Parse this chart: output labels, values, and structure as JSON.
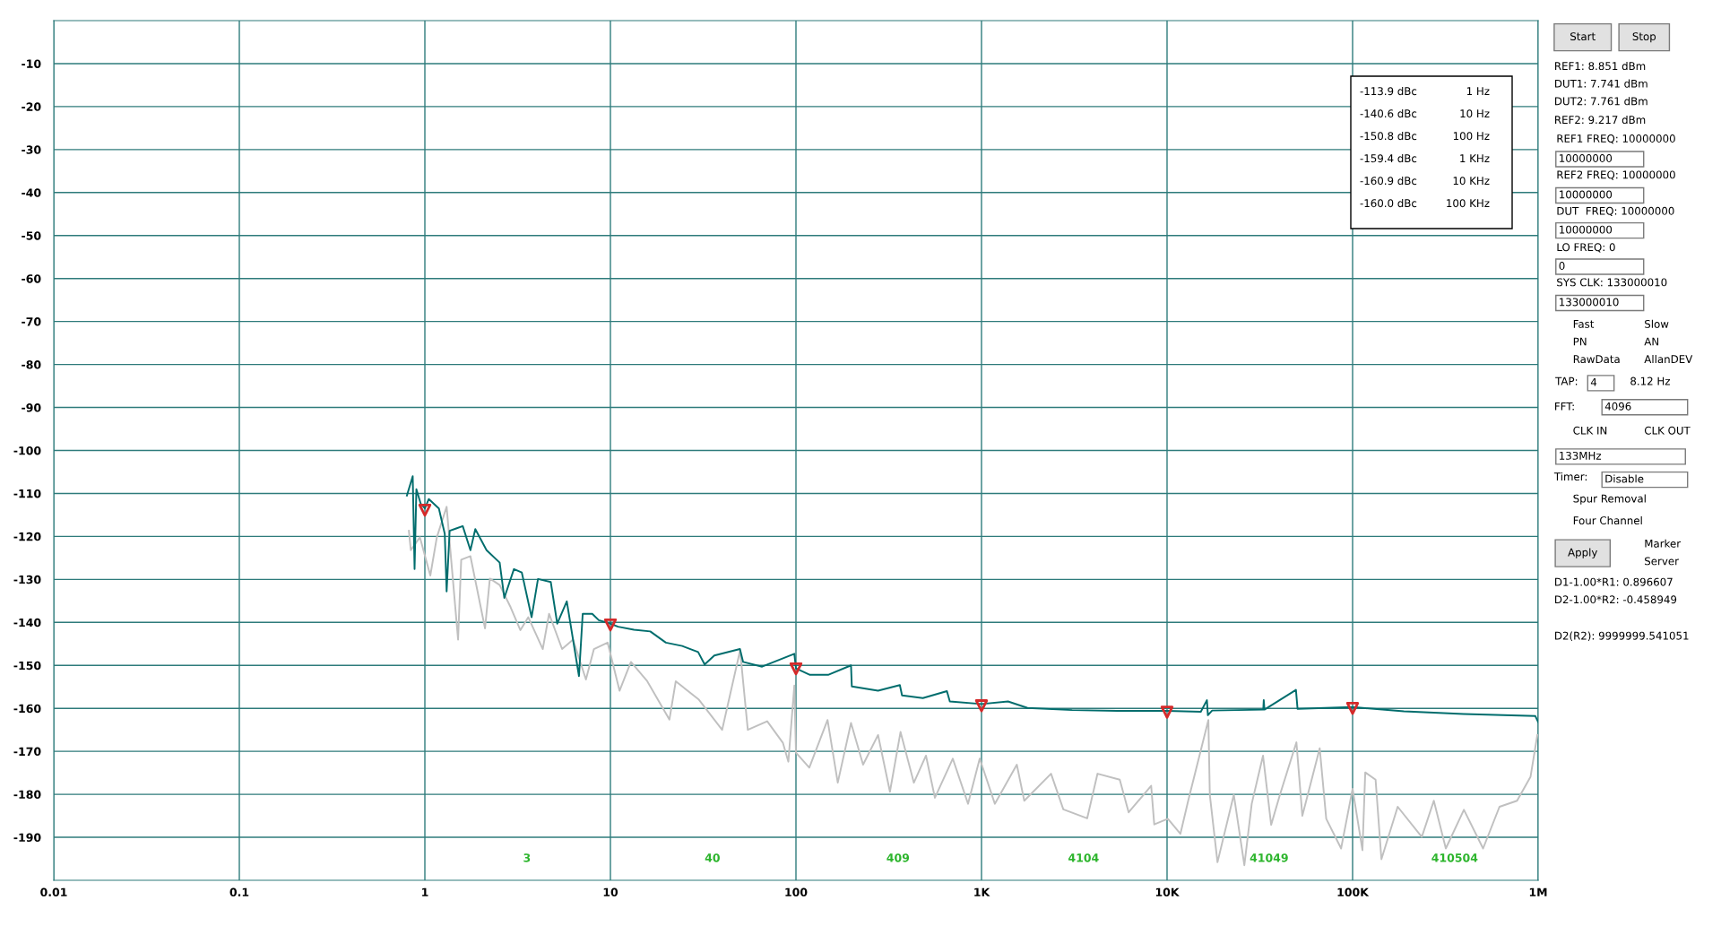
{
  "chart_data": [
    {
      "type": "line",
      "xlim": [
        0.01,
        1000000
      ],
      "ylim": [
        -200,
        0
      ],
      "log": "x",
      "grid": true,
      "xticks": [
        0.01,
        0.1,
        1,
        10,
        100,
        {
          "value": 1000,
          "label": "1K"
        },
        {
          "value": 10000,
          "label": "10K"
        },
        {
          "value": 100000,
          "label": "100K"
        },
        {
          "value": 1000000,
          "label": "1M"
        }
      ],
      "yticks": [
        -10,
        -20,
        -30,
        -40,
        -50,
        -60,
        -70,
        -80,
        -90,
        -100,
        -110,
        -120,
        -130,
        -140,
        -150,
        -160,
        -170,
        -180,
        -190
      ],
      "series": [
        {
          "color": "#c0c0c0",
          "x": [
            0.82,
            0.84,
            0.94,
            1.07,
            1.16,
            1.31,
            1.51,
            1.57,
            1.76,
            2.11,
            2.24,
            2.53,
            2.9,
            3.27,
            3.61,
            4.32,
            4.67,
            5.49,
            6.29,
            7.38,
            8.15,
            9.66,
            11.2,
            12.9,
            15.8,
            20.8,
            22.5,
            30,
            40,
            50,
            55,
            70,
            85,
            91,
            98,
            100,
            118,
            148,
            168,
            198,
            230,
            277,
            321,
            366,
            432,
            502,
            561,
            700,
            846,
            978,
            1180,
            1550,
            1700,
            2370,
            2760,
            3710,
            4220,
            5560,
            6210,
            8210,
            8530,
            10100,
            11800,
            13000,
            16700,
            17000,
            18700,
            22900,
            26100,
            28600,
            32900,
            36400,
            40600,
            49800,
            53600,
            66500,
            72100,
            86700,
            100000,
            113000,
            117000,
            133000,
            143000,
            175000,
            236000,
            274000,
            318000,
            398000,
            505000,
            619000,
            770000,
            910000,
            990000
          ],
          "values": [
            -118.7,
            -123.2,
            -120.2,
            -129.1,
            -120.2,
            -113.1,
            -144,
            -125.4,
            -124.6,
            -141.4,
            -129.8,
            -131.3,
            -136.5,
            -141.8,
            -138.8,
            -146.2,
            -138,
            -146.2,
            -144,
            -153.3,
            -146.2,
            -144.7,
            -155.9,
            -149.2,
            -153.7,
            -162.6,
            -153.7,
            -158,
            -165,
            -146.5,
            -165,
            -163,
            -168,
            -172.4,
            -154.7,
            -170.3,
            -173.8,
            -162.7,
            -177.3,
            -163.4,
            -173.1,
            -166.2,
            -179.4,
            -165.5,
            -177.3,
            -171,
            -180.8,
            -171.7,
            -182.2,
            -171.7,
            -182.2,
            -173.1,
            -181.5,
            -175.2,
            -183.5,
            -185.6,
            -175.2,
            -176.6,
            -184.2,
            -178,
            -187,
            -185.7,
            -189.2,
            -181.5,
            -162.7,
            -180.1,
            -195.8,
            -180.1,
            -196.5,
            -182.2,
            -171,
            -187.1,
            -180.1,
            -167.9,
            -185,
            -169.3,
            -185.7,
            -192.6,
            -178.7,
            -193,
            -174.9,
            -176.6,
            -195.1,
            -182.9,
            -189.9,
            -181.5,
            -192.6,
            -183.6,
            -192.6,
            -182.9,
            -181.5,
            -175.9,
            -166.2
          ]
        },
        {
          "color": "#006d6d",
          "x": [
            0.8,
            0.86,
            0.88,
            0.9,
            0.95,
            1.0,
            1.05,
            1.19,
            1.28,
            1.31,
            1.36,
            1.6,
            1.76,
            1.87,
            2.15,
            2.53,
            2.68,
            3.02,
            3.33,
            3.76,
            4.07,
            4.77,
            5.17,
            5.82,
            6.77,
            7.09,
            7.98,
            8.66,
            10,
            11,
            13.4,
            16.4,
            19.9,
            24.4,
            29.7,
            32.2,
            36.3,
            49.9,
            51.9,
            65.7,
            98,
            100,
            119,
            149,
            198,
            200,
            277,
            363,
            373,
            483,
            651,
            675,
            1000,
            1390,
            1770,
            3080,
            5380,
            10000,
            15200,
            16400,
            16600,
            17500,
            33000,
            33200,
            33500,
            49500,
            50500,
            100000,
            189000,
            396000,
            966000,
            1000000
          ],
          "values": [
            -110.5,
            -106,
            -127.6,
            -109,
            -112.4,
            -113.5,
            -111.3,
            -113.5,
            -119.4,
            -132.8,
            -118.7,
            -117.6,
            -123.2,
            -118.3,
            -123.2,
            -126.1,
            -134.3,
            -127.6,
            -128.4,
            -138.8,
            -129.9,
            -130.6,
            -140.3,
            -135.1,
            -152.5,
            -138,
            -138,
            -139.5,
            -140.3,
            -141,
            -141.7,
            -142.1,
            -144.7,
            -145.5,
            -146.9,
            -149.8,
            -147.7,
            -146.2,
            -149.2,
            -150.3,
            -147.3,
            -150.7,
            -152.2,
            -152.2,
            -150,
            -154.9,
            -155.9,
            -154.6,
            -157,
            -157.6,
            -156,
            -158.4,
            -159,
            -158.4,
            -159.9,
            -160.4,
            -160.6,
            -160.6,
            -160.8,
            -158.1,
            -161.6,
            -160.5,
            -160.3,
            -158.1,
            -160.3,
            -155.7,
            -160.1,
            -159.7,
            -160.7,
            -161.3,
            -161.8,
            -163.2
          ]
        },
        {
          "type": "scatter",
          "marker": "triangle",
          "color": "#d42a2a",
          "x": [
            1,
            10,
            100,
            1000,
            10000,
            100000
          ],
          "values": [
            -113.9,
            -140.6,
            -150.8,
            -159.4,
            -160.9,
            -160.0
          ]
        }
      ],
      "annotations": [
        "3",
        "40",
        "409",
        "4104",
        "41049",
        "410504",
        "-113.9 dBc",
        "1 Hz",
        "-140.6 dBc",
        "10 Hz",
        "-150.8 dBc",
        "100 Hz",
        "-159.4 dBc",
        "1 KHz",
        "-160.9 dBc",
        "10 KHz",
        "-160.0 dBc",
        "100 KHz"
      ]
    },
    {
      "type": "other",
      "annotations": [
        "Start",
        "Stop",
        "REF1: 8.851 dBm",
        "DUT1: 7.741 dBm",
        "DUT2: 7.761 dBm",
        "REF2: 9.217 dBm",
        "REF1 FREQ: 10000000",
        "10000000",
        "REF2 FREQ: 10000000",
        "10000000",
        "DUT  FREQ: 10000000",
        "10000000",
        "LO FREQ: 0",
        "0",
        "SYS CLK: 133000010",
        "133000010",
        "Fast",
        "Slow",
        "PN",
        "AN",
        "RawData",
        "AllanDEV",
        "TAP:",
        "4",
        "8.12 Hz",
        "FFT:",
        "4096",
        "CLK IN",
        "CLK OUT",
        "133MHz",
        "Timer:",
        "Disable",
        "Spur Removal",
        "Four Channel",
        "Apply",
        "Marker",
        "Server",
        "D1-1.00*R1: 0.896607",
        "D2-1.00*R2: -0.458949",
        "D2(R2): 9999999.541051"
      ]
    }
  ]
}
